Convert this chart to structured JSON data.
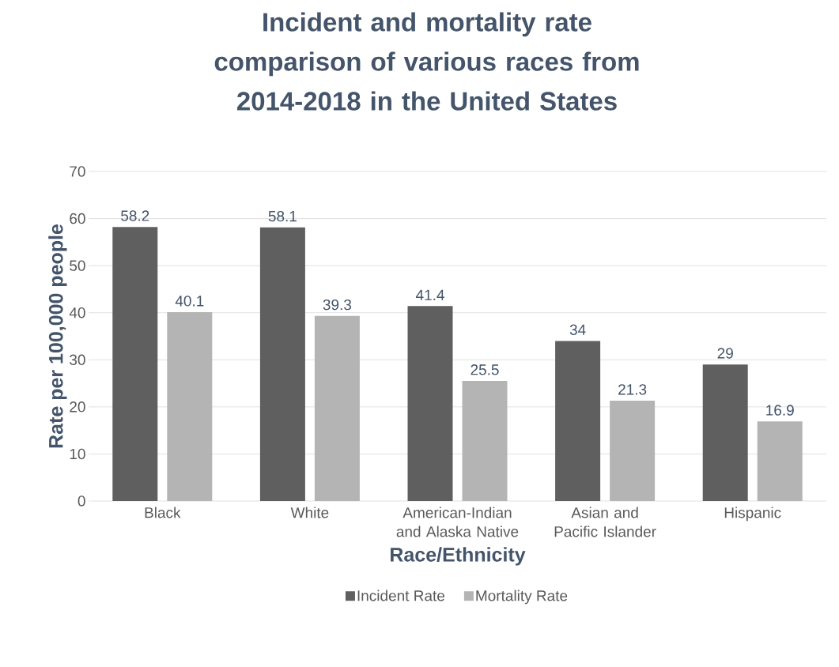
{
  "chart_data": {
    "type": "bar",
    "title": "Incident and mortality rate comparison of various races from 2014-2018 in the United States",
    "xlabel": "Race/Ethnicity",
    "ylabel": "Rate per 100,000 people",
    "categories": [
      "Black",
      "White",
      "American-Indian and Alaska Native",
      "Asian and Pacific Islander",
      "Hispanic"
    ],
    "series": [
      {
        "name": "Incident Rate",
        "color": "#5f5f5f",
        "values": [
          58.2,
          58.1,
          41.4,
          34,
          29
        ]
      },
      {
        "name": "Mortality Rate",
        "color": "#b4b4b4",
        "values": [
          40.1,
          39.3,
          25.5,
          21.3,
          16.9
        ]
      }
    ],
    "ylim": [
      0,
      70
    ],
    "yticks": [
      0,
      10,
      20,
      30,
      40,
      50,
      60,
      70
    ],
    "grid": "y",
    "legend": "bottom",
    "data_labels": true
  }
}
